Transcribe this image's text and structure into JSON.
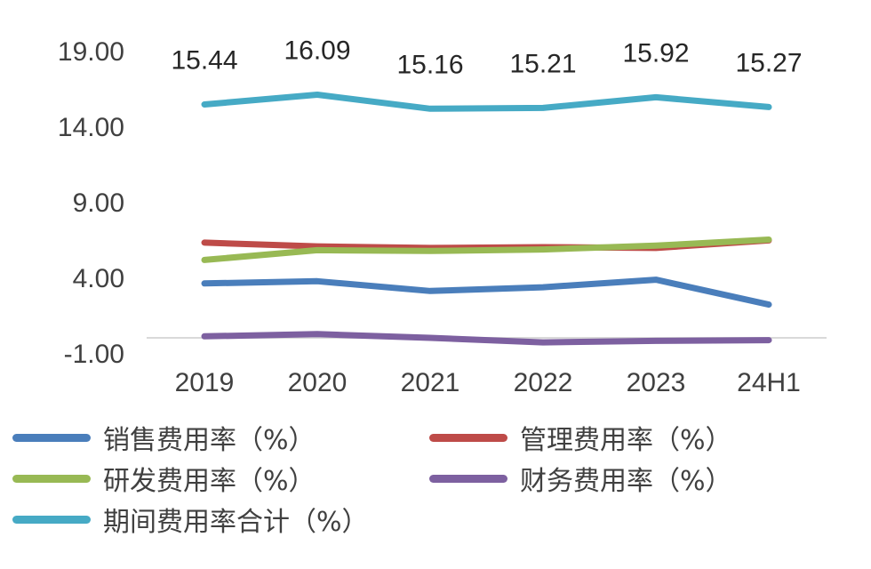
{
  "chart_data": {
    "type": "line",
    "categories": [
      "2019",
      "2020",
      "2021",
      "2022",
      "2023",
      "24H1"
    ],
    "y_tick_labels": [
      "19.00",
      "14.00",
      "9.00",
      "4.00",
      "-1.00"
    ],
    "ylim": [
      -1,
      19
    ],
    "grid": false,
    "legend_position": "bottom",
    "series": [
      {
        "name": "销售费用率（%）",
        "color": "#4A7EBB",
        "values": [
          3.6,
          3.75,
          3.1,
          3.35,
          3.85,
          2.2
        ]
      },
      {
        "name": "管理费用率（%）",
        "color": "#BE4B48",
        "values": [
          6.3,
          6.05,
          5.95,
          6.0,
          5.95,
          6.45
        ]
      },
      {
        "name": "研发费用率（%）",
        "color": "#98B954",
        "values": [
          5.15,
          5.8,
          5.75,
          5.85,
          6.1,
          6.5
        ]
      },
      {
        "name": "财务费用率（%）",
        "color": "#7D60A0",
        "values": [
          0.1,
          0.25,
          0.0,
          -0.3,
          -0.2,
          -0.15
        ]
      },
      {
        "name": "期间费用率合计（%）",
        "color": "#46AAC5",
        "values": [
          15.44,
          16.09,
          15.16,
          15.21,
          15.92,
          15.27
        ],
        "data_labels": [
          "15.44",
          "16.09",
          "15.16",
          "15.21",
          "15.92",
          "15.27"
        ]
      }
    ]
  }
}
